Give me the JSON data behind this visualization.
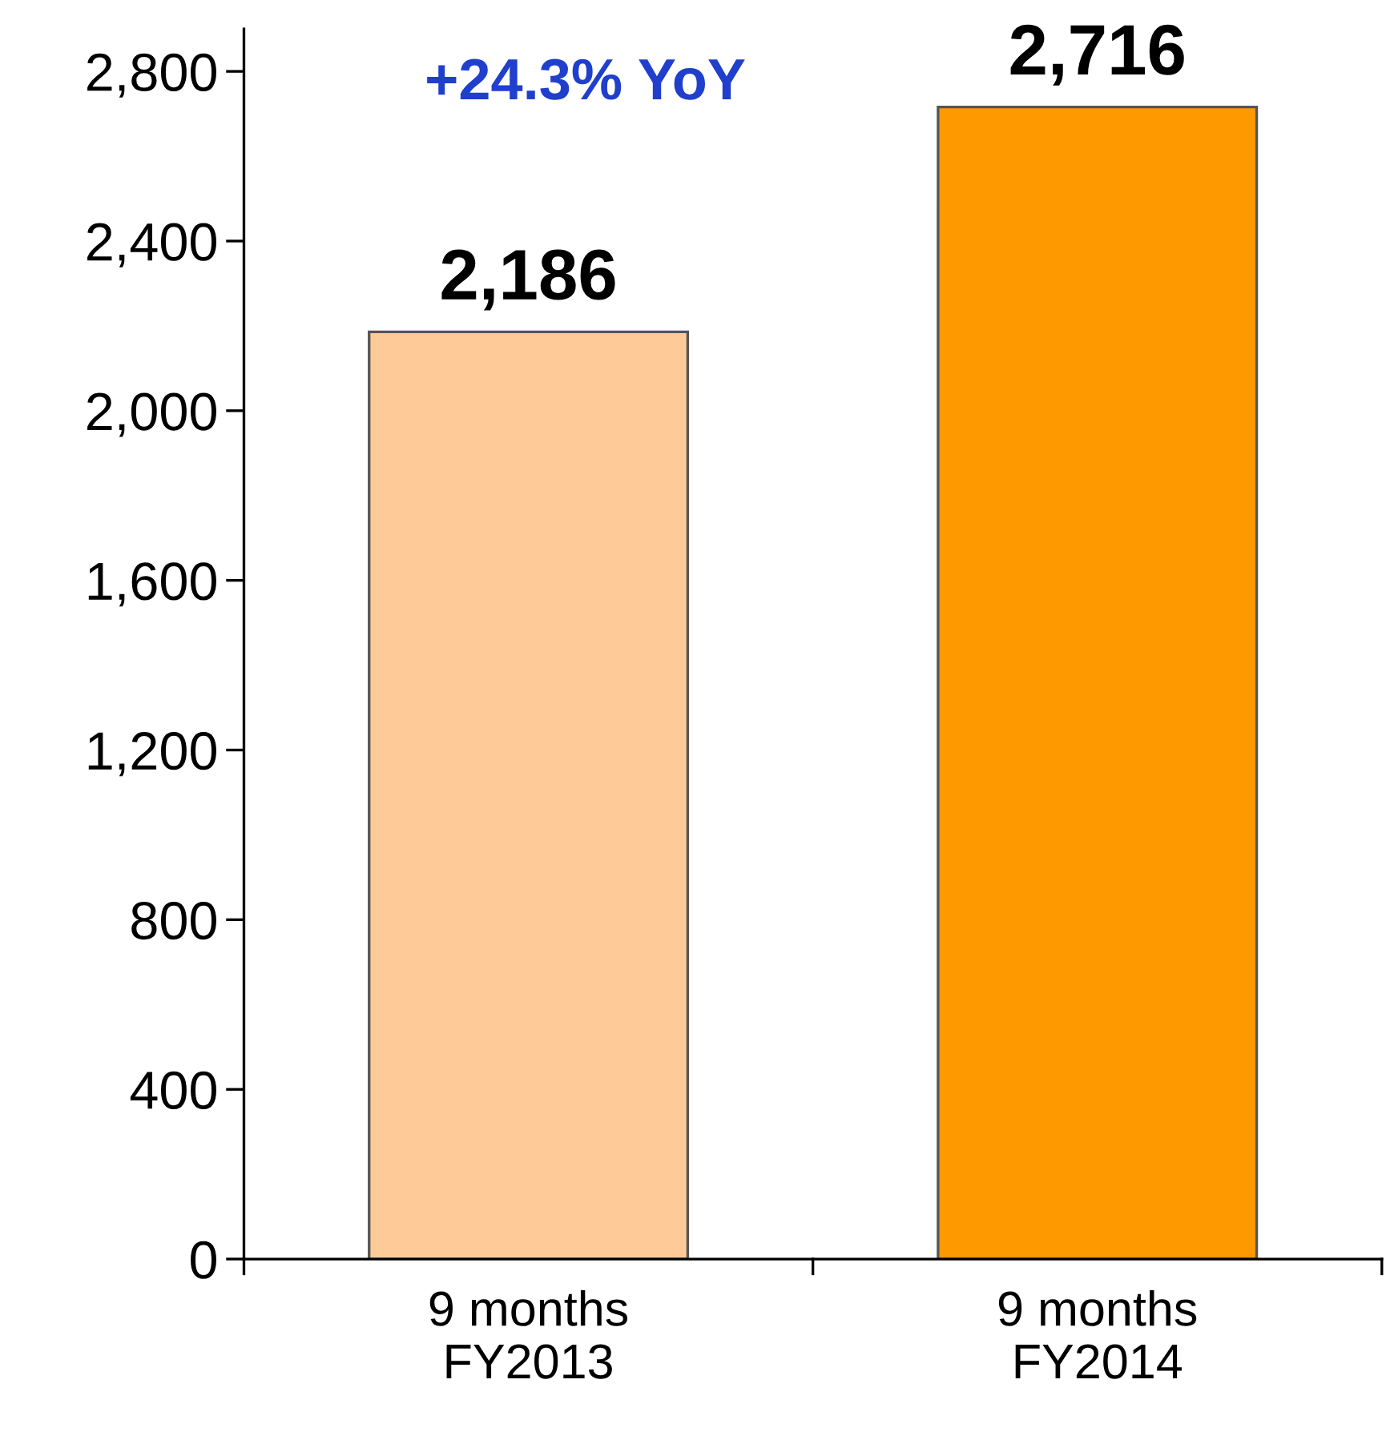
{
  "chart_data": {
    "type": "bar",
    "categories": [
      "9 months\nFY2013",
      "9 months\nFY2014"
    ],
    "values": [
      2186,
      2716
    ],
    "colors": [
      "#fdca98",
      "#ff9900"
    ],
    "ylim": [
      0,
      2900
    ],
    "yticks": [
      {
        "value": 0,
        "label": "0"
      },
      {
        "value": 400,
        "label": "400"
      },
      {
        "value": 800,
        "label": "800"
      },
      {
        "value": 1200,
        "label": "1,200"
      },
      {
        "value": 1600,
        "label": "1,600"
      },
      {
        "value": 2000,
        "label": "2,000"
      },
      {
        "value": 2400,
        "label": "2,400"
      },
      {
        "value": 2800,
        "label": "2,800"
      }
    ],
    "value_labels": [
      "2,186",
      "2,716"
    ],
    "annotations": [
      "+24.3% YoY"
    ],
    "grid": false,
    "legend": false
  }
}
